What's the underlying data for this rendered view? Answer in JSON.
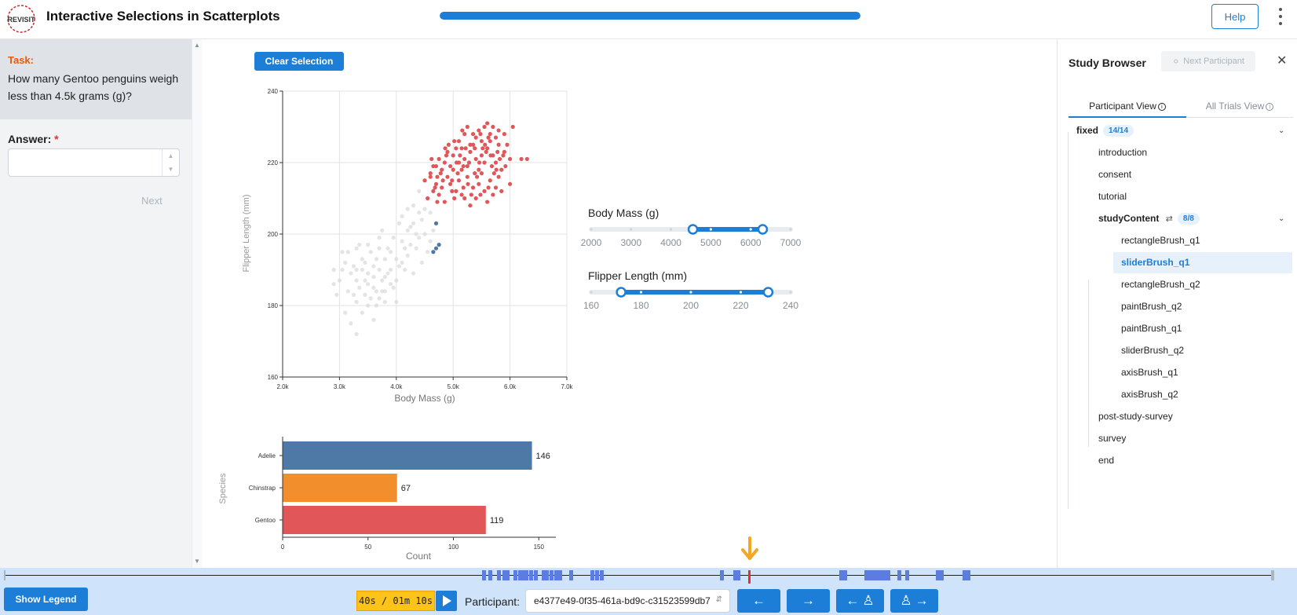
{
  "header": {
    "logo_text": "REVISIT",
    "title": "Interactive Selections in Scatterplots",
    "progress": 1.0,
    "help_label": "Help"
  },
  "task": {
    "label": "Task:",
    "question": "How many Gentoo penguins weigh less than 4.5k grams (g)?",
    "answer_label": "Answer:",
    "answer_required_mark": "*",
    "answer_value": "",
    "next_label": "Next"
  },
  "main": {
    "clear_selection_label": "Clear Selection"
  },
  "chart_data": [
    {
      "type": "scatter",
      "xlabel": "Body Mass (g)",
      "ylabel": "Flipper Length (mm)",
      "xlim": [
        2000,
        7000
      ],
      "ylim": [
        160,
        240
      ],
      "x_ticks": [
        "2.0k",
        "3.0k",
        "4.0k",
        "5.0k",
        "6.0k",
        "7.0k"
      ],
      "y_ticks": [
        "160",
        "180",
        "200",
        "220",
        "240"
      ],
      "grid": true,
      "series": [
        {
          "color": "#e15759",
          "points": [
            [
              4550,
              210
            ],
            [
              4650,
              212
            ],
            [
              4700,
              214
            ],
            [
              4500,
              215
            ],
            [
              4600,
              216
            ],
            [
              4750,
              211
            ],
            [
              4800,
              213
            ],
            [
              4850,
              209
            ],
            [
              4900,
              216
            ],
            [
              4950,
              214
            ],
            [
              5000,
              218
            ],
            [
              5050,
              212
            ],
            [
              5100,
              215
            ],
            [
              5150,
              211
            ],
            [
              5200,
              210
            ],
            [
              5250,
              216
            ],
            [
              5300,
              208
            ],
            [
              5350,
              213
            ],
            [
              5400,
              210
            ],
            [
              5450,
              214
            ],
            [
              5500,
              217
            ],
            [
              5550,
              212
            ],
            [
              5600,
              209
            ],
            [
              5650,
              215
            ],
            [
              5700,
              211
            ],
            [
              5750,
              213
            ],
            [
              5800,
              216
            ],
            [
              5850,
              212
            ],
            [
              6000,
              214
            ],
            [
              4700,
              219
            ],
            [
              4750,
              221
            ],
            [
              4800,
              218
            ],
            [
              4850,
              220
            ],
            [
              4900,
              223
            ],
            [
              4950,
              219
            ],
            [
              5000,
              222
            ],
            [
              5050,
              224
            ],
            [
              5100,
              220
            ],
            [
              5150,
              218
            ],
            [
              5200,
              221
            ],
            [
              5250,
              219
            ],
            [
              5300,
              223
            ],
            [
              5350,
              225
            ],
            [
              5400,
              221
            ],
            [
              5450,
              218
            ],
            [
              5500,
              222
            ],
            [
              5550,
              220
            ],
            [
              5600,
              224
            ],
            [
              5650,
              226
            ],
            [
              5700,
              222
            ],
            [
              5750,
              220
            ],
            [
              5800,
              225
            ],
            [
              5850,
              218
            ],
            [
              5900,
              223
            ],
            [
              6000,
              221
            ],
            [
              6200,
              221
            ],
            [
              6300,
              221
            ],
            [
              5100,
              226
            ],
            [
              5200,
              228
            ],
            [
              5300,
              225
            ],
            [
              5400,
              227
            ],
            [
              5450,
              229
            ],
            [
              5500,
              226
            ],
            [
              5550,
              230
            ],
            [
              5600,
              231
            ],
            [
              5650,
              228
            ],
            [
              5700,
              230
            ],
            [
              5750,
              227
            ],
            [
              5800,
              229
            ],
            [
              5900,
              228
            ],
            [
              5950,
              225
            ],
            [
              6050,
              230
            ],
            [
              5250,
              230
            ],
            [
              5350,
              228
            ],
            [
              5150,
              224
            ],
            [
              4600,
              217
            ],
            [
              4650,
              219
            ],
            [
              4720,
              216
            ],
            [
              4680,
              213
            ],
            [
              4780,
              217
            ],
            [
              4880,
              222
            ],
            [
              4980,
              215
            ],
            [
              5080,
              217
            ],
            [
              5180,
              213
            ],
            [
              5280,
              220
            ],
            [
              5380,
              217
            ],
            [
              5480,
              211
            ],
            [
              5580,
              223
            ],
            [
              5680,
              219
            ],
            [
              5780,
              223
            ],
            [
              5880,
              222
            ],
            [
              4620,
              221
            ],
            [
              4820,
              215
            ],
            [
              5020,
              210
            ],
            [
              5120,
              222
            ],
            [
              5220,
              224
            ],
            [
              5420,
              216
            ],
            [
              5520,
              224
            ],
            [
              5620,
              213
            ],
            [
              5720,
              217
            ],
            [
              5820,
              221
            ],
            [
              5920,
              219
            ],
            [
              4920,
              225
            ],
            [
              5320,
              211
            ],
            [
              5020,
              226
            ],
            [
              4720,
              209
            ],
            [
              5620,
              227
            ],
            [
              5180,
              219
            ],
            [
              5380,
              224
            ],
            [
              4980,
              212
            ],
            [
              5480,
              228
            ],
            [
              5260,
              214
            ],
            [
              4860,
              224
            ],
            [
              5060,
              220
            ],
            [
              5160,
              229
            ],
            [
              5560,
              225
            ],
            [
              5660,
              222
            ],
            [
              5460,
              220
            ],
            [
              5760,
              218
            ]
          ]
        },
        {
          "color": "#4e79a7",
          "points": [
            [
              4700,
              203
            ],
            [
              4750,
              197
            ],
            [
              4700,
              196
            ],
            [
              4650,
              195
            ]
          ]
        },
        {
          "color": "#d9d9d9",
          "points": [
            [
              2900,
              186
            ],
            [
              2900,
              190
            ],
            [
              3000,
              187
            ],
            [
              3050,
              195
            ],
            [
              3100,
              192
            ],
            [
              3150,
              184
            ],
            [
              3200,
              189
            ],
            [
              3250,
              191
            ],
            [
              3300,
              181
            ],
            [
              3300,
              187
            ],
            [
              3350,
              185
            ],
            [
              3400,
              190
            ],
            [
              3400,
              193
            ],
            [
              3450,
              183
            ],
            [
              3500,
              186
            ],
            [
              3500,
              189
            ],
            [
              3550,
              195
            ],
            [
              3600,
              188
            ],
            [
              3600,
              191
            ],
            [
              3650,
              184
            ],
            [
              3700,
              190
            ],
            [
              3700,
              196
            ],
            [
              3750,
              187
            ],
            [
              3800,
              193
            ],
            [
              3800,
              181
            ],
            [
              3850,
              189
            ],
            [
              3900,
              190
            ],
            [
              3900,
              195
            ],
            [
              3950,
              185
            ],
            [
              4000,
              187
            ],
            [
              4000,
              193
            ],
            [
              4050,
              191
            ],
            [
              4100,
              198
            ],
            [
              4150,
              190
            ],
            [
              4200,
              194
            ],
            [
              4250,
              197
            ],
            [
              4300,
              189
            ],
            [
              4350,
              196
            ],
            [
              4400,
              199
            ],
            [
              4450,
              192
            ],
            [
              4500,
              200
            ],
            [
              4550,
              195
            ],
            [
              4600,
              198
            ],
            [
              4650,
              201
            ],
            [
              3100,
              178
            ],
            [
              3200,
              175
            ],
            [
              3300,
              172
            ],
            [
              3400,
              178
            ],
            [
              3500,
              180
            ],
            [
              3600,
              176
            ],
            [
              3700,
              182
            ],
            [
              3800,
              184
            ],
            [
              4000,
              181
            ],
            [
              3300,
              196
            ],
            [
              3500,
              197
            ],
            [
              3700,
              199
            ],
            [
              4200,
              201
            ],
            [
              4300,
              203
            ],
            [
              4400,
              206
            ],
            [
              4500,
              207
            ],
            [
              4200,
              207
            ],
            [
              4100,
              205
            ],
            [
              4400,
              212
            ],
            [
              4300,
              208
            ],
            [
              3950,
              199
            ],
            [
              3750,
              201
            ],
            [
              3650,
              193
            ],
            [
              3450,
              192
            ],
            [
              3350,
              197
            ],
            [
              3850,
              196
            ],
            [
              4150,
              196
            ],
            [
              3550,
              182
            ],
            [
              3250,
              183
            ],
            [
              3050,
              190
            ],
            [
              2950,
              183
            ],
            [
              3150,
              195
            ],
            [
              4050,
              203
            ],
            [
              4250,
              202
            ],
            [
              3450,
              187
            ],
            [
              3750,
              184
            ],
            [
              4450,
              204
            ],
            [
              4600,
              206
            ],
            [
              3900,
              186
            ],
            [
              3650,
              180
            ],
            [
              4100,
              192
            ],
            [
              3300,
              190
            ],
            [
              3600,
              185
            ],
            [
              4350,
              200
            ],
            [
              3800,
              188
            ]
          ]
        }
      ]
    },
    {
      "type": "bar",
      "orientation": "horizontal",
      "categories": [
        "Adelie",
        "Chinstrap",
        "Gentoo"
      ],
      "values": [
        146,
        67,
        119
      ],
      "colors": [
        "#4e79a7",
        "#f28e2b",
        "#e15759"
      ],
      "xlabel": "Count",
      "ylabel": "Species",
      "xlim": [
        0,
        160
      ],
      "x_ticks": [
        "0",
        "50",
        "100",
        "150"
      ]
    }
  ],
  "sliders": [
    {
      "label": "Body Mass (g)",
      "min": 2000,
      "max": 7000,
      "range": [
        4550,
        6300
      ],
      "ticks": [
        "2000",
        "3000",
        "4000",
        "5000",
        "6000",
        "7000"
      ]
    },
    {
      "label": "Flipper Length (mm)",
      "min": 160,
      "max": 240,
      "range": [
        172,
        231
      ],
      "ticks": [
        "160",
        "180",
        "200",
        "220",
        "240"
      ]
    }
  ],
  "browser": {
    "title": "Study Browser",
    "next_participant_label": "Next Participant",
    "tabs": [
      "Participant View",
      "All Trials View"
    ],
    "root_label": "fixed",
    "root_badge": "14/14",
    "items_before": [
      "introduction",
      "consent",
      "tutorial"
    ],
    "group_label": "studyContent",
    "group_badge": "8/8",
    "group_items": [
      "rectangleBrush_q1",
      "sliderBrush_q1",
      "rectangleBrush_q2",
      "paintBrush_q2",
      "paintBrush_q1",
      "sliderBrush_q2",
      "axisBrush_q1",
      "axisBrush_q2"
    ],
    "selected_item": "sliderBrush_q1",
    "items_after": [
      "post-study-survey",
      "survey",
      "end"
    ]
  },
  "footer": {
    "legend_label": "Show Legend",
    "time": "40s / 01m 10s",
    "participant_label": "Participant:",
    "participant_id": "e4377e49-0f35-461a-bd9c-c31523599db7"
  },
  "colors": {
    "accent": "#1c7ed6",
    "task_label": "#e8590c",
    "marker": "#f5a623"
  }
}
